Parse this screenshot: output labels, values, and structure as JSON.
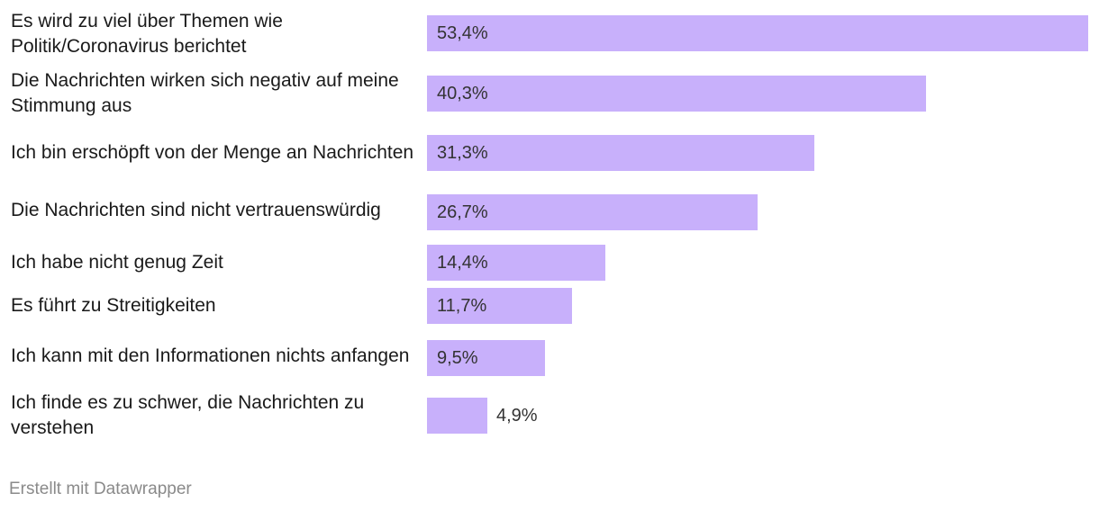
{
  "chart_data": {
    "type": "bar",
    "orientation": "horizontal",
    "categories": [
      "Es wird zu viel über Themen wie Politik/Coronavirus berichtet",
      "Die Nachrichten wirken sich negativ auf meine Stimmung aus",
      "Ich bin erschöpft von der Menge an Nachrichten",
      "Die Nachrichten sind nicht vertrauenswürdig",
      "Ich habe nicht genug Zeit",
      "Es führt zu Streitigkeiten",
      "Ich kann mit den Informationen nichts anfangen",
      "Ich finde es zu schwer, die Nachrichten zu verstehen"
    ],
    "values": [
      53.4,
      40.3,
      31.3,
      26.7,
      14.4,
      11.7,
      9.5,
      4.9
    ],
    "value_labels": [
      "53,4%",
      "40,3%",
      "31,3%",
      "26,7%",
      "14,4%",
      "11,7%",
      "9,5%",
      "4,9%"
    ],
    "xlim": [
      0,
      53.4
    ],
    "bar_color": "#c8b0fb",
    "title": "",
    "xlabel": "",
    "ylabel": ""
  },
  "footer": {
    "credit": "Erstellt mit Datawrapper"
  }
}
